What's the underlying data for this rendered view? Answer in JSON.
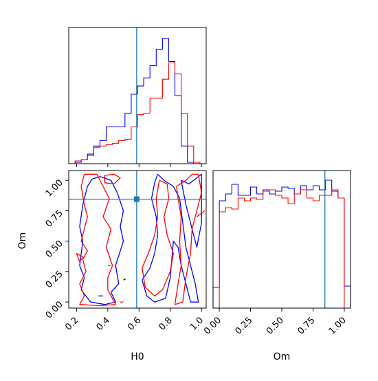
{
  "colors": {
    "series_a": "#0000ff",
    "series_b": "#ff0000",
    "truth": "#1f77b4",
    "frame": "#000000"
  },
  "chart_data": [
    {
      "id": "h0-marginal",
      "type": "histogram",
      "x_range": [
        0.15,
        1.03
      ],
      "truth": 0.585,
      "show_x_ticklabels": false,
      "x_ticks": [
        0.2,
        0.4,
        0.6,
        0.8,
        1.0
      ],
      "bins": [
        0.15,
        0.19,
        0.23,
        0.27,
        0.31,
        0.35,
        0.39,
        0.43,
        0.47,
        0.51,
        0.55,
        0.59,
        0.63,
        0.67,
        0.71,
        0.75,
        0.79,
        0.83,
        0.87,
        0.91,
        0.95,
        0.99,
        1.03
      ],
      "series": [
        {
          "color": "blue",
          "counts": [
            0,
            0.01,
            0.03,
            0.07,
            0.13,
            0.17,
            0.27,
            0.27,
            0.27,
            0.37,
            0.51,
            0.57,
            0.63,
            0.72,
            0.84,
            0.92,
            0.75,
            0.5,
            0.13,
            0.01,
            0,
            0
          ]
        },
        {
          "color": "red",
          "counts": [
            0,
            0.02,
            0.03,
            0.06,
            0.12,
            0.13,
            0.14,
            0.15,
            0.17,
            0.18,
            0.27,
            0.36,
            0.37,
            0.48,
            0.48,
            0.62,
            0.74,
            0.66,
            0.37,
            0.13,
            0.01,
            0
          ]
        }
      ]
    },
    {
      "id": "joint-h0-om",
      "type": "contour",
      "x_range": [
        0.15,
        1.03
      ],
      "y_range": [
        -0.05,
        1.08
      ],
      "x_ticks": [
        0.2,
        0.4,
        0.6,
        0.8,
        1.0
      ],
      "x_tick_labels": [
        "0.2",
        "0.4",
        "0.6",
        "0.8",
        "1.0"
      ],
      "y_ticks": [
        0,
        0.25,
        0.5,
        0.75,
        1.0
      ],
      "y_tick_labels": [
        "0.00",
        "0.25",
        "0.50",
        "0.75",
        "1.00"
      ],
      "xlabel": "H0",
      "ylabel": "Om",
      "truth": {
        "x": 0.585,
        "y": 0.845
      },
      "contours": [
        {
          "color": "blue",
          "points": [
            [
              0.3,
              1.01
            ],
            [
              0.27,
              0.95
            ],
            [
              0.24,
              0.8
            ],
            [
              0.22,
              0.62
            ],
            [
              0.24,
              0.5
            ],
            [
              0.22,
              0.3
            ],
            [
              0.25,
              0.2
            ],
            [
              0.23,
              0.1
            ],
            [
              0.29,
              0.0
            ],
            [
              0.38,
              -0.02
            ],
            [
              0.45,
              0.0
            ],
            [
              0.42,
              0.08
            ],
            [
              0.47,
              0.15
            ],
            [
              0.45,
              0.3
            ],
            [
              0.5,
              0.5
            ],
            [
              0.48,
              0.62
            ],
            [
              0.5,
              0.75
            ],
            [
              0.46,
              0.9
            ],
            [
              0.42,
              1.0
            ],
            [
              0.35,
              1.03
            ],
            [
              0.3,
              1.01
            ]
          ]
        },
        {
          "color": "blue",
          "points": [
            [
              0.72,
              1.05
            ],
            [
              0.76,
              1.0
            ],
            [
              0.82,
              0.95
            ],
            [
              0.86,
              0.85
            ],
            [
              0.88,
              0.65
            ],
            [
              0.9,
              0.45
            ],
            [
              0.93,
              0.3
            ],
            [
              0.96,
              0.15
            ],
            [
              0.98,
              0.0
            ],
            [
              0.93,
              0.0
            ],
            [
              0.9,
              0.15
            ],
            [
              0.87,
              0.3
            ],
            [
              0.85,
              0.45
            ],
            [
              0.82,
              0.5
            ],
            [
              0.8,
              0.2
            ],
            [
              0.77,
              0.03
            ],
            [
              0.7,
              0.0
            ],
            [
              0.65,
              0.05
            ],
            [
              0.62,
              0.18
            ],
            [
              0.67,
              0.28
            ],
            [
              0.7,
              0.4
            ],
            [
              0.72,
              0.55
            ],
            [
              0.71,
              0.7
            ],
            [
              0.68,
              0.85
            ],
            [
              0.7,
              0.98
            ],
            [
              0.72,
              1.05
            ]
          ]
        },
        {
          "color": "blue",
          "points": [
            [
              0.87,
              1.0
            ],
            [
              0.92,
              0.97
            ],
            [
              0.97,
              1.02
            ],
            [
              1.0,
              1.05
            ],
            [
              1.0,
              0.65
            ],
            [
              0.97,
              0.45
            ],
            [
              0.94,
              0.6
            ],
            [
              0.9,
              0.8
            ],
            [
              0.87,
              1.0
            ]
          ]
        },
        {
          "color": "blue",
          "points": [
            [
              0.5,
              0.18
            ],
            [
              0.515,
              0.19
            ]
          ]
        },
        {
          "color": "blue",
          "points": [
            [
              0.34,
              0.05
            ],
            [
              0.37,
              0.05
            ]
          ]
        },
        {
          "color": "red",
          "points": [
            [
              0.25,
              1.05
            ],
            [
              0.23,
              0.95
            ],
            [
              0.25,
              0.8
            ],
            [
              0.27,
              0.7
            ],
            [
              0.25,
              0.6
            ],
            [
              0.23,
              0.5
            ],
            [
              0.27,
              0.42
            ],
            [
              0.24,
              0.35
            ],
            [
              0.26,
              0.25
            ],
            [
              0.22,
              0.15
            ],
            [
              0.25,
              0.05
            ],
            [
              0.22,
              -0.02
            ],
            [
              0.35,
              -0.03
            ],
            [
              0.45,
              -0.02
            ],
            [
              0.4,
              0.1
            ],
            [
              0.4,
              0.2
            ],
            [
              0.43,
              0.3
            ],
            [
              0.39,
              0.45
            ],
            [
              0.42,
              0.6
            ],
            [
              0.37,
              0.7
            ],
            [
              0.41,
              0.85
            ],
            [
              0.37,
              0.95
            ],
            [
              0.33,
              1.05
            ],
            [
              0.25,
              1.05
            ]
          ]
        },
        {
          "color": "red",
          "points": [
            [
              0.2,
              0.4
            ],
            [
              0.24,
              0.37
            ],
            [
              0.22,
              0.33
            ],
            [
              0.2,
              0.4
            ]
          ]
        },
        {
          "color": "red",
          "points": [
            [
              0.38,
              0.98
            ],
            [
              0.44,
              0.97
            ],
            [
              0.48,
              1.02
            ],
            [
              0.44,
              1.05
            ],
            [
              0.38,
              1.04
            ],
            [
              0.38,
              0.98
            ]
          ]
        },
        {
          "color": "red",
          "points": [
            [
              0.4,
              0.3
            ],
            [
              0.42,
              0.3
            ]
          ]
        },
        {
          "color": "red",
          "points": [
            [
              0.48,
              0.0
            ],
            [
              0.5,
              0.0
            ]
          ]
        },
        {
          "color": "red",
          "points": [
            [
              0.73,
              1.0
            ],
            [
              0.71,
              0.85
            ],
            [
              0.72,
              0.7
            ],
            [
              0.7,
              0.55
            ],
            [
              0.66,
              0.4
            ],
            [
              0.62,
              0.28
            ],
            [
              0.64,
              0.12
            ],
            [
              0.7,
              0.05
            ],
            [
              0.75,
              0.1
            ],
            [
              0.8,
              0.25
            ],
            [
              0.82,
              0.4
            ],
            [
              0.78,
              0.55
            ],
            [
              0.76,
              0.7
            ],
            [
              0.79,
              0.85
            ],
            [
              0.78,
              0.97
            ],
            [
              0.73,
              1.0
            ]
          ]
        },
        {
          "color": "red",
          "points": [
            [
              0.84,
              0.95
            ],
            [
              0.9,
              1.0
            ],
            [
              0.94,
              1.05
            ],
            [
              0.98,
              1.05
            ],
            [
              1.0,
              0.9
            ],
            [
              0.97,
              0.75
            ],
            [
              0.94,
              0.6
            ],
            [
              0.93,
              0.4
            ],
            [
              0.9,
              0.2
            ],
            [
              0.88,
              0.0
            ],
            [
              0.83,
              -0.02
            ],
            [
              0.85,
              0.15
            ],
            [
              0.87,
              0.3
            ],
            [
              0.86,
              0.5
            ],
            [
              0.87,
              0.7
            ],
            [
              0.85,
              0.85
            ],
            [
              0.84,
              0.95
            ]
          ]
        },
        {
          "color": "red",
          "points": [
            [
              0.97,
              0.7
            ],
            [
              1.02,
              0.75
            ]
          ]
        }
      ]
    },
    {
      "id": "om-marginal",
      "type": "histogram",
      "x_range": [
        -0.05,
        1.05
      ],
      "truth": 0.845,
      "x_ticks": [
        0,
        0.25,
        0.5,
        0.75,
        1.0
      ],
      "x_tick_labels": [
        "0.00",
        "0.25",
        "0.50",
        "0.75",
        "1.00"
      ],
      "xlabel": "Om",
      "bins": [
        -0.05,
        0.0,
        0.05,
        0.1,
        0.15,
        0.2,
        0.25,
        0.3,
        0.35,
        0.4,
        0.45,
        0.5,
        0.55,
        0.6,
        0.65,
        0.7,
        0.75,
        0.8,
        0.85,
        0.9,
        0.95,
        1.0,
        1.05
      ],
      "series": [
        {
          "color": "blue",
          "counts": [
            0.15,
            0.78,
            0.83,
            0.9,
            0.82,
            0.82,
            0.88,
            0.83,
            0.86,
            0.83,
            0.85,
            0.88,
            0.87,
            0.83,
            0.89,
            0.86,
            0.89,
            0.86,
            0.93,
            0.85,
            0.8,
            0.16
          ]
        },
        {
          "color": "red",
          "counts": [
            0,
            0.7,
            0.73,
            0.72,
            0.8,
            0.78,
            0.8,
            0.79,
            0.85,
            0.86,
            0.82,
            0.8,
            0.76,
            0.83,
            0.86,
            0.8,
            0.78,
            0.82,
            0.82,
            0.86,
            0.8,
            0
          ]
        }
      ]
    }
  ]
}
